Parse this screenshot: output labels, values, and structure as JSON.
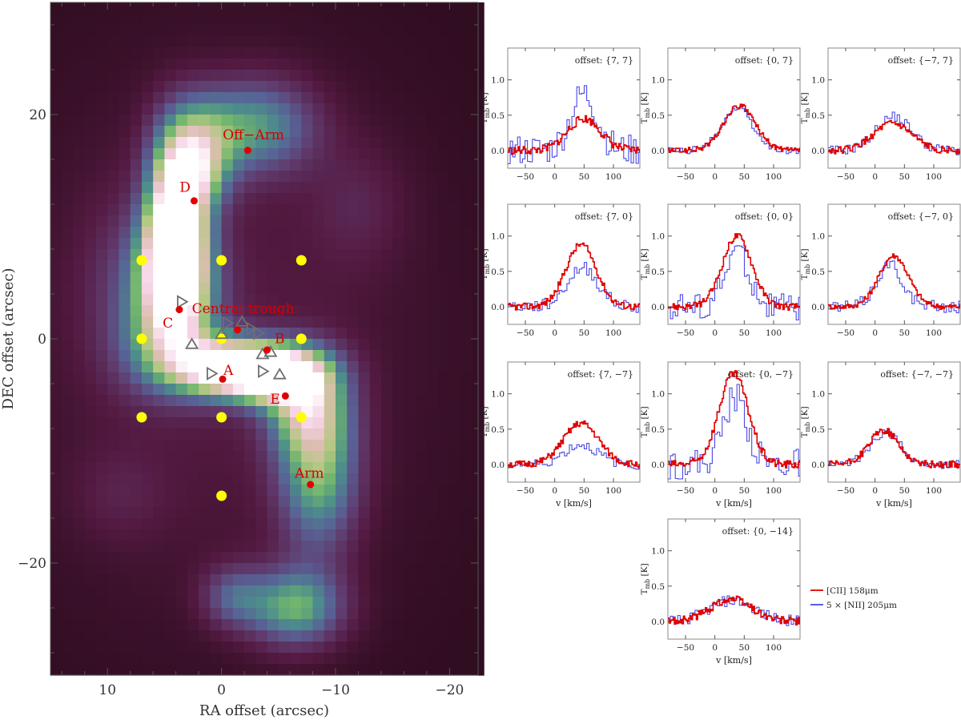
{
  "chart_data": [
    {
      "type": "heatmap",
      "title": "",
      "xlabel": "RA offset (arcsec)",
      "ylabel": "DEC offset (arcsec)",
      "xlim": [
        15,
        -22.5
      ],
      "ylim": [
        -30,
        30
      ],
      "xticks": [
        10,
        0,
        -10,
        -20
      ],
      "yticks": [
        20,
        0,
        -20
      ],
      "xtick_labels": [
        "10",
        "0",
        "−10",
        "−20"
      ],
      "ytick_labels": [
        "20",
        "0",
        "−20"
      ],
      "colors": {
        "low": "#3a0f28",
        "mid": "#5b9a8c",
        "high": "#ffffff"
      },
      "emission": [
        {
          "x": 4,
          "y": 10,
          "sx": 1.8,
          "sy": 5,
          "a": 1.0
        },
        {
          "x": 4.2,
          "y": 5,
          "sx": 2.6,
          "sy": 4,
          "a": 0.65
        },
        {
          "x": 2.2,
          "y": 14.5,
          "sx": 2,
          "sy": 2.5,
          "a": 0.35
        },
        {
          "x": -4.5,
          "y": -3,
          "sx": 3.2,
          "sy": 1.8,
          "a": 0.95
        },
        {
          "x": 0,
          "y": -2.5,
          "sx": 3,
          "sy": 1.8,
          "a": 0.7
        },
        {
          "x": -3.5,
          "y": 19,
          "sx": 3.5,
          "sy": 3,
          "a": 0.45
        },
        {
          "x": 2,
          "y": 18,
          "sx": 2.5,
          "sy": 3,
          "a": 0.4
        },
        {
          "x": -8.5,
          "y": -12,
          "sx": 2.5,
          "sy": 5,
          "a": 0.55
        },
        {
          "x": -7.5,
          "y": -6,
          "sx": 2.5,
          "sy": 3,
          "a": 0.5
        },
        {
          "x": -6.5,
          "y": -24,
          "sx": 3,
          "sy": 2.5,
          "a": 0.55
        },
        {
          "x": -1,
          "y": -23,
          "sx": 2,
          "sy": 2,
          "a": 0.3
        },
        {
          "x": 4.8,
          "y": -1,
          "sx": 3,
          "sy": 3,
          "a": 0.35
        },
        {
          "x": 0,
          "y": 0,
          "sx": 13,
          "sy": 18,
          "a": 0.14
        },
        {
          "x": -12,
          "y": 12,
          "sx": 3,
          "sy": 4,
          "a": 0.12
        },
        {
          "x": 9,
          "y": 5,
          "sx": 3,
          "sy": 6,
          "a": 0.12
        },
        {
          "x": 9,
          "y": -14,
          "sx": 3,
          "sy": 3,
          "a": 0.1
        }
      ],
      "yellow_points": [
        {
          "x": 7,
          "y": 7
        },
        {
          "x": 0,
          "y": 7
        },
        {
          "x": -7,
          "y": 7
        },
        {
          "x": 7,
          "y": 0
        },
        {
          "x": 0,
          "y": 0
        },
        {
          "x": -7,
          "y": 0
        },
        {
          "x": 7,
          "y": -7
        },
        {
          "x": 0,
          "y": -7
        },
        {
          "x": -7,
          "y": -7
        },
        {
          "x": 0,
          "y": -14
        }
      ],
      "red_points": [
        {
          "label": "Off−Arm",
          "x": -2.3,
          "y": 16.8,
          "lx": -2.8,
          "ly": 17.8
        },
        {
          "label": "D",
          "x": 2.4,
          "y": 12.3,
          "lx": 3.2,
          "ly": 13.1
        },
        {
          "label": "Central trough",
          "x": -1.4,
          "y": 0.8,
          "lx": -1.9,
          "ly": 2.3
        },
        {
          "label": "C",
          "x": 3.7,
          "y": 2.6,
          "lx": 4.7,
          "ly": 1.0
        },
        {
          "label": "B",
          "x": -4.0,
          "y": -1.0,
          "lx": -5.1,
          "ly": -0.4
        },
        {
          "label": "A",
          "x": -0.1,
          "y": -3.6,
          "lx": -0.6,
          "ly": -3.2
        },
        {
          "label": "E",
          "x": -5.6,
          "y": -5.1,
          "lx": -4.7,
          "ly": -5.8
        },
        {
          "label": "Arm",
          "x": -7.8,
          "y": -13.0,
          "lx": -7.7,
          "ly": -12.4
        }
      ],
      "triangles_up": [
        {
          "x": 2.6,
          "y": -0.5
        },
        {
          "x": -1.8,
          "y": 1.5
        },
        {
          "x": -4.3,
          "y": -1.2
        },
        {
          "x": -5.1,
          "y": -3.2
        },
        {
          "x": -3.6,
          "y": -1.4
        },
        {
          "x": 0,
          "y": 0.4
        }
      ],
      "triangles_right": [
        {
          "x": 3.5,
          "y": 3.3
        },
        {
          "x": -0.5,
          "y": 1.4
        },
        {
          "x": -3.2,
          "y": 0.5
        },
        {
          "x": -2.6,
          "y": 0.9
        },
        {
          "x": 0.9,
          "y": -3.1
        },
        {
          "x": -3.6,
          "y": -2.9
        }
      ]
    },
    {
      "type": "line",
      "xlabel": "v [km/s]",
      "ylabel": "T_mb [K]",
      "xlim": [
        -80,
        145
      ],
      "ylim": [
        -0.25,
        1.45
      ],
      "xticks": [
        -50,
        0,
        50,
        100
      ],
      "yticks": [
        0.0,
        0.5,
        1.0
      ],
      "xtick_labels": [
        "−50",
        "0",
        "50",
        "100"
      ],
      "ytick_labels": [
        "0.0",
        "0.5",
        "1.0"
      ],
      "legend": {
        "placement": "right of bottom panel",
        "entries": [
          {
            "name": "[CII] 158μm",
            "color": "#e00000"
          },
          {
            "name": "5 × [NII] 205μm",
            "color": "#4a4ae0"
          }
        ]
      },
      "panels": [
        {
          "offset": "offset: {7, 7}",
          "cii": {
            "center": 50,
            "amp": 0.45,
            "width": 28
          },
          "nii": {
            "center": 50,
            "amp": 0.8,
            "width": 22
          },
          "noise_cii": 0.06,
          "noise_nii": 0.22,
          "seed": 11
        },
        {
          "offset": "offset: {0, 7}",
          "cii": {
            "center": 42,
            "amp": 0.63,
            "width": 27
          },
          "nii": {
            "center": 38,
            "amp": 0.6,
            "width": 26
          },
          "noise_cii": 0.04,
          "noise_nii": 0.05,
          "seed": 12
        },
        {
          "offset": "offset: {−7, 7}",
          "cii": {
            "center": 30,
            "amp": 0.38,
            "width": 32
          },
          "nii": {
            "center": 32,
            "amp": 0.48,
            "width": 30
          },
          "noise_cii": 0.05,
          "noise_nii": 0.07,
          "seed": 13
        },
        {
          "offset": "offset: {7, 0}",
          "cii": {
            "center": 45,
            "amp": 0.88,
            "width": 26
          },
          "nii": {
            "center": 48,
            "amp": 0.55,
            "width": 26
          },
          "noise_cii": 0.05,
          "noise_nii": 0.09,
          "seed": 14
        },
        {
          "offset": "offset: {0, 0}",
          "cii": {
            "center": 38,
            "amp": 1.0,
            "width": 25
          },
          "nii": {
            "center": 38,
            "amp": 0.8,
            "width": 20
          },
          "noise_cii": 0.05,
          "noise_nii": 0.2,
          "seed": 15
        },
        {
          "offset": "offset: {−7, 0}",
          "cii": {
            "center": 32,
            "amp": 0.72,
            "width": 25
          },
          "nii": {
            "center": 25,
            "amp": 0.6,
            "width": 22
          },
          "noise_cii": 0.04,
          "noise_nii": 0.09,
          "seed": 16
        },
        {
          "offset": "offset: {7, −7}",
          "cii": {
            "center": 45,
            "amp": 0.58,
            "width": 30
          },
          "nii": {
            "center": 45,
            "amp": 0.28,
            "width": 28
          },
          "noise_cii": 0.05,
          "noise_nii": 0.07,
          "seed": 17
        },
        {
          "offset": "offset: {0, −7}",
          "cii": {
            "center": 32,
            "amp": 1.28,
            "width": 25
          },
          "nii": {
            "center": 35,
            "amp": 0.95,
            "width": 20
          },
          "noise_cii": 0.06,
          "noise_nii": 0.22,
          "seed": 18
        },
        {
          "offset": "offset: {−7, −7}",
          "cii": {
            "center": 15,
            "amp": 0.48,
            "width": 25
          },
          "nii": {
            "center": 18,
            "amp": 0.45,
            "width": 26
          },
          "noise_cii": 0.05,
          "noise_nii": 0.06,
          "seed": 19
        },
        {
          "offset": "offset: {0, −14}",
          "cii": {
            "center": 28,
            "amp": 0.32,
            "width": 35
          },
          "nii": {
            "center": 30,
            "amp": 0.3,
            "width": 38
          },
          "noise_cii": 0.06,
          "noise_nii": 0.08,
          "seed": 20
        }
      ]
    }
  ]
}
